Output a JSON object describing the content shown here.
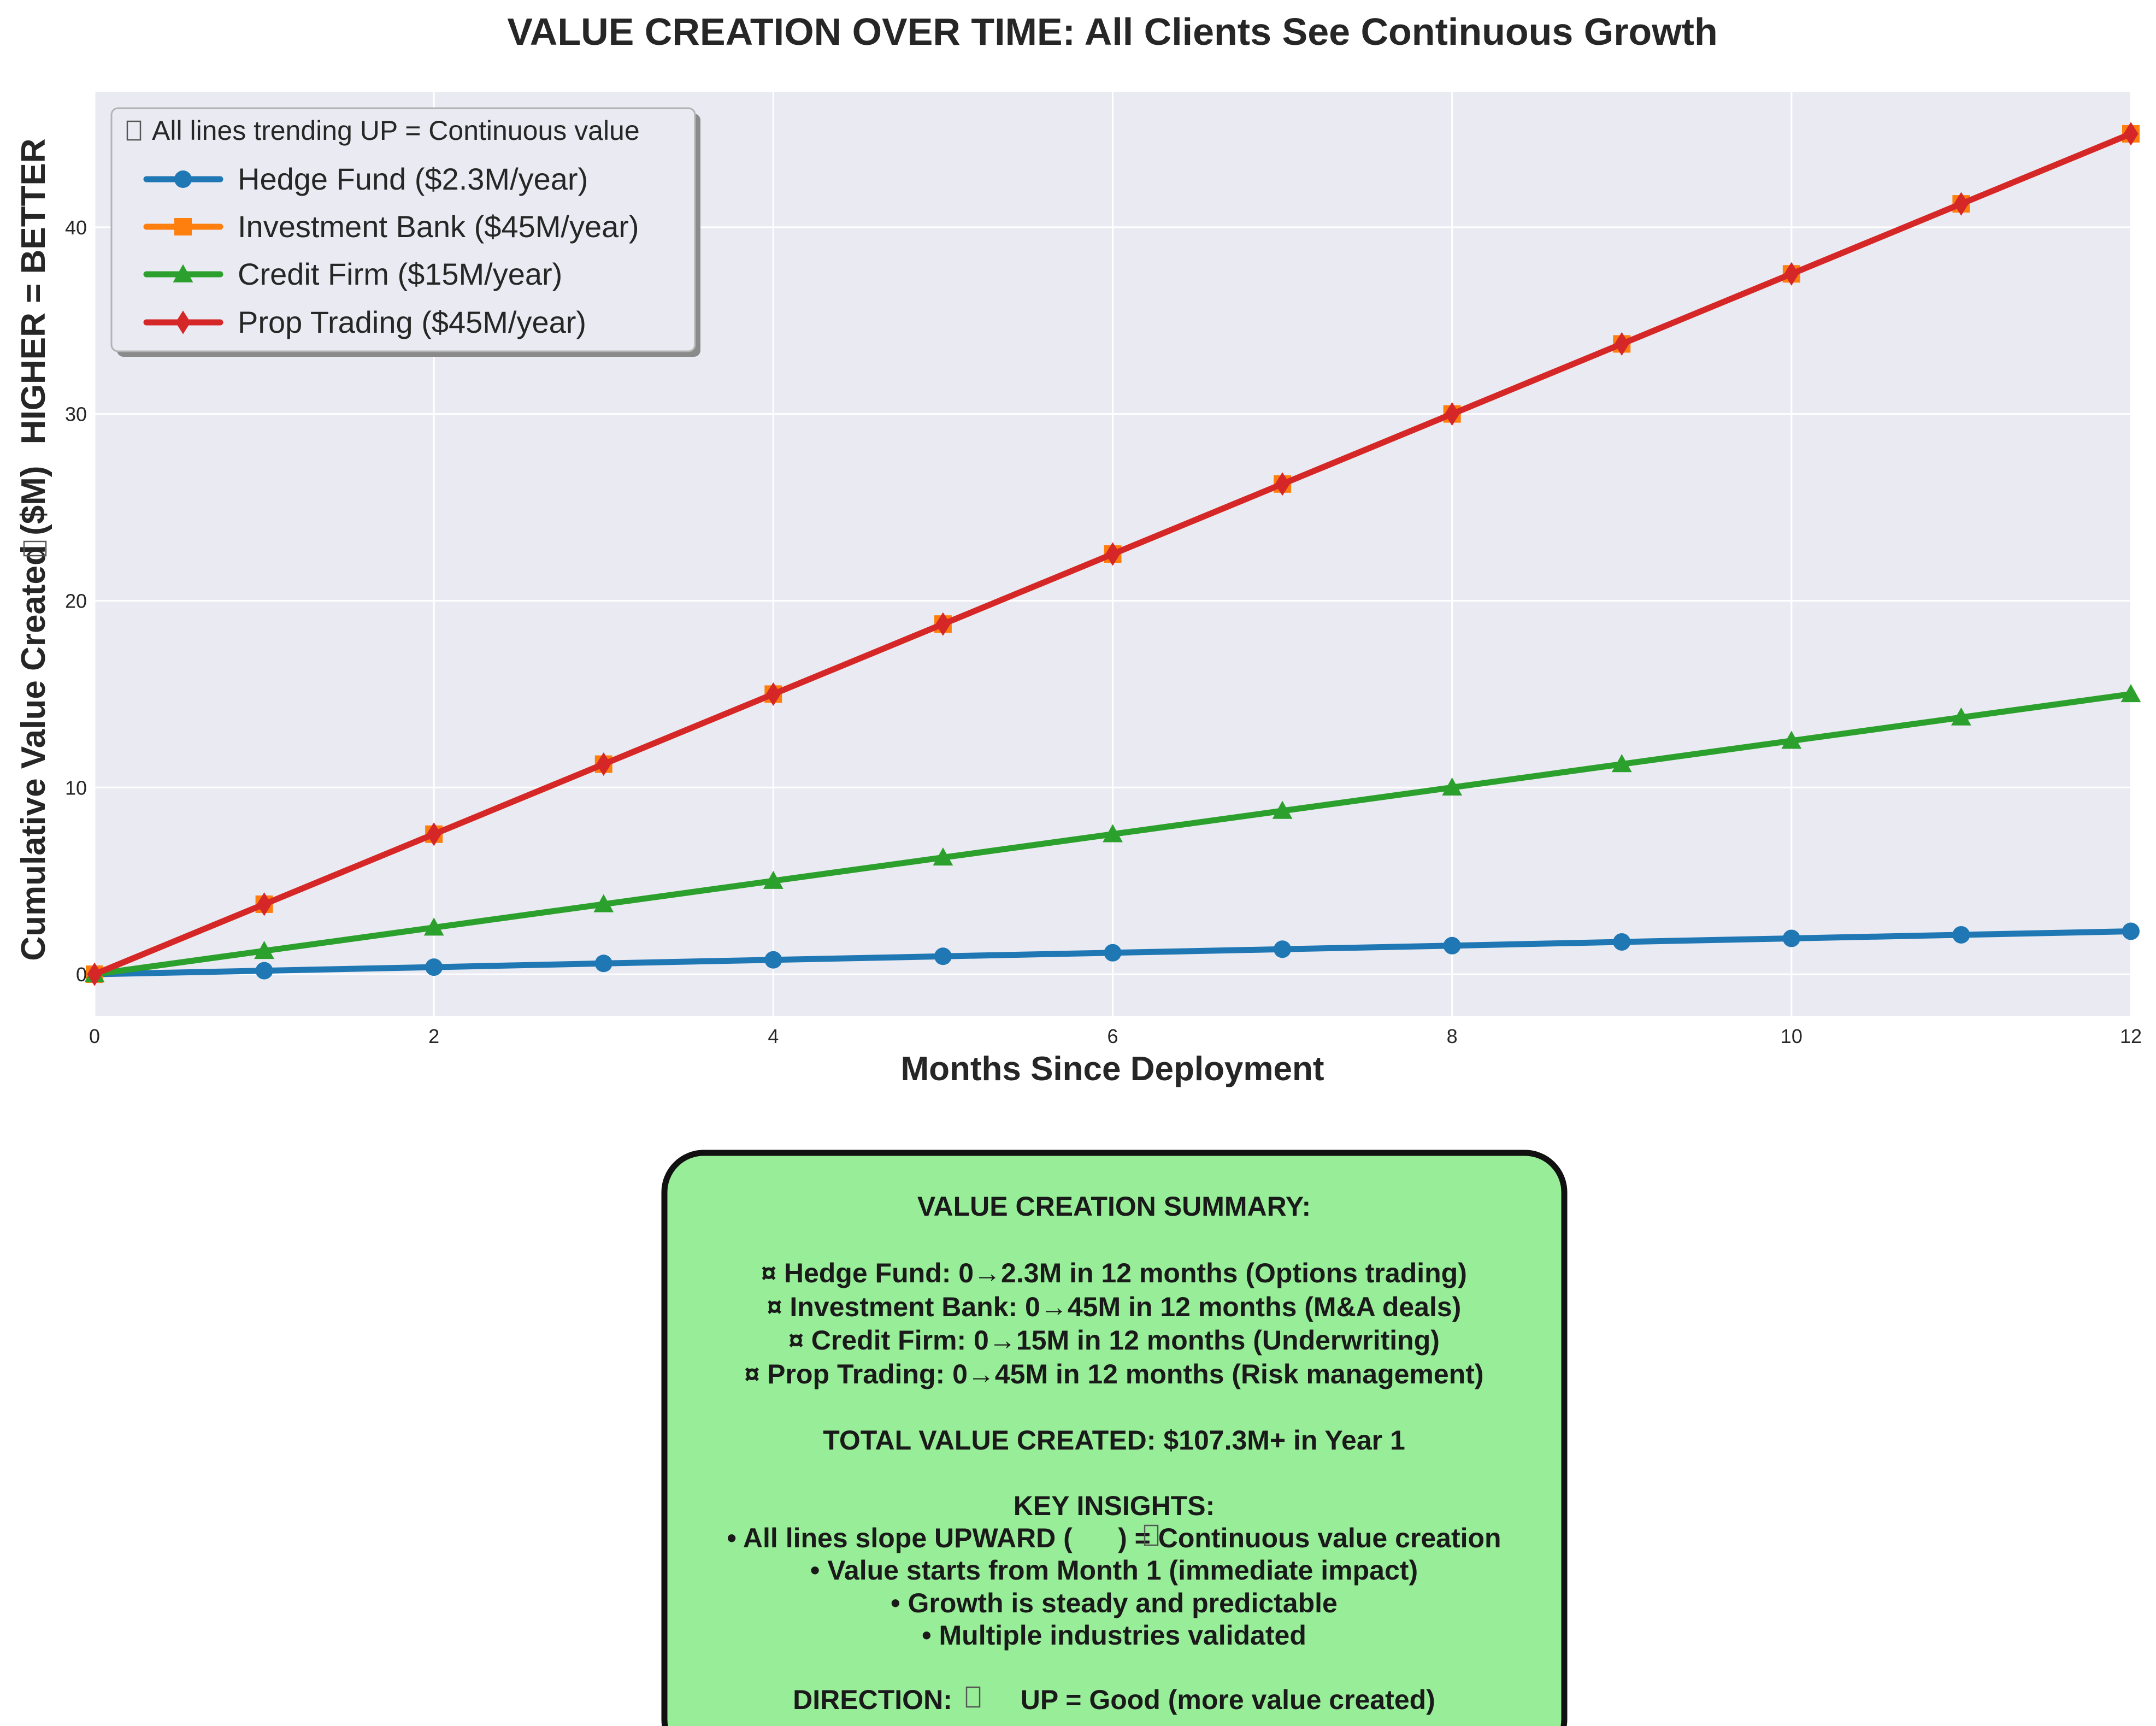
{
  "colors": {
    "plot_background": "#eaeaf2",
    "grid": "#ffffff",
    "summary_background": "#98ee98",
    "summary_border": "#111111",
    "text": "#262626"
  },
  "chart_data": {
    "type": "line",
    "title": "VALUE CREATION OVER TIME: All Clients See Continuous Growth",
    "xlabel": "Months Since Deployment",
    "ylabel_parts": [
      "Cumulative Value Created ($M)",
      "HIGHER = BETTER"
    ],
    "xlim": [
      0,
      12
    ],
    "ylim": [
      -2.25,
      47.25
    ],
    "xticks": [
      0,
      2,
      4,
      6,
      8,
      10,
      12
    ],
    "yticks": [
      0,
      10,
      20,
      30,
      40
    ],
    "grid": true,
    "legend": {
      "placement": "top-left",
      "title": "All lines trending UP = Continuous value"
    },
    "x": [
      0,
      1,
      2,
      3,
      4,
      5,
      6,
      7,
      8,
      9,
      10,
      11,
      12
    ],
    "series": [
      {
        "name": "Hedge Fund ($2.3M/year)",
        "color": "#1f77b4",
        "marker": "circle",
        "values": [
          0,
          0.19,
          0.38,
          0.58,
          0.77,
          0.96,
          1.15,
          1.34,
          1.53,
          1.73,
          1.92,
          2.11,
          2.3
        ]
      },
      {
        "name": "Investment Bank ($45M/year)",
        "color": "#ff7f0e",
        "marker": "square",
        "values": [
          0,
          3.75,
          7.5,
          11.25,
          15,
          18.75,
          22.5,
          26.25,
          30,
          33.75,
          37.5,
          41.25,
          45
        ]
      },
      {
        "name": "Credit Firm ($15M/year)",
        "color": "#2ca02c",
        "marker": "triangle",
        "values": [
          0,
          1.25,
          2.5,
          3.75,
          5,
          6.25,
          7.5,
          8.75,
          10,
          11.25,
          12.5,
          13.75,
          15
        ]
      },
      {
        "name": "Prop Trading ($45M/year)",
        "color": "#d62728",
        "marker": "thin-diamond",
        "values": [
          0,
          3.75,
          7.5,
          11.25,
          15,
          18.75,
          22.5,
          26.25,
          30,
          33.75,
          37.5,
          41.25,
          45
        ]
      }
    ]
  },
  "summary": {
    "heading": "VALUE CREATION SUMMARY:",
    "bullet_glyph": "¤",
    "clients": [
      "Hedge Fund: 0→2.3M in 12 months (Options trading)",
      "Investment Bank: 0→45M in 12 months (M&A deals)",
      "Credit Firm: 0→15M in 12 months (Underwriting)",
      "Prop Trading: 0→45M in 12 months (Risk management)"
    ],
    "total": "TOTAL VALUE CREATED: $107.3M+ in Year 1",
    "insights_heading": "KEY INSIGHTS:",
    "insight_1_before": "• All lines slope UPWARD (",
    "insight_1_after": ") = Continuous value creation",
    "insights": [
      "• Value starts from Month 1 (immediate impact)",
      "• Growth is steady and predictable",
      "• Multiple industries validated"
    ],
    "direction_before": "DIRECTION:",
    "direction_after": "UP = Good (more value created)"
  }
}
